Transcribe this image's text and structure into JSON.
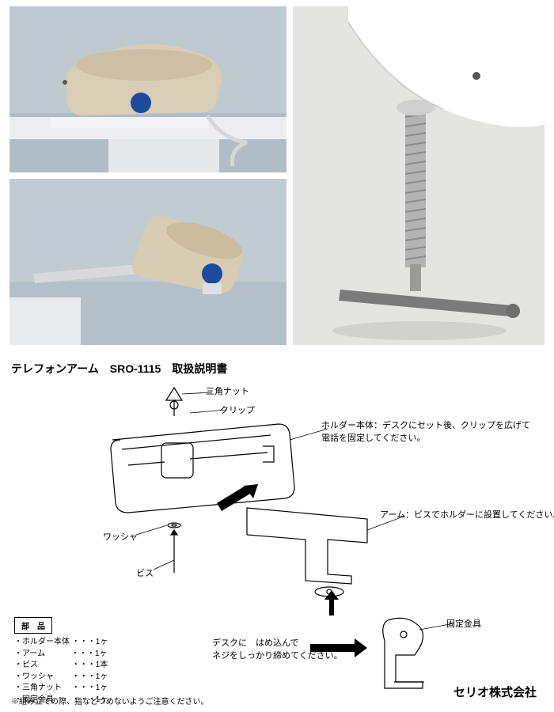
{
  "title": "テレフォンアーム　SRO-1115　取扱説明書",
  "photos": {
    "p1": {
      "bg_top": "#bfcad0",
      "bg_bot": "#bcc9d2",
      "phone": "#d9cdb6",
      "accent": "#1d4a9e",
      "cord": "#d6d6d6",
      "shelf": "#eeeef0"
    },
    "p2": {
      "bg": "#c1cbd2",
      "phone": "#d8ccb3",
      "accent": "#1b4aa0",
      "arm": "#d9d9dd"
    },
    "p3": {
      "bg": "#e4e4e2",
      "bracket": "#ffffff",
      "screw": "#a8a8a8",
      "bar": "#7a7a7a",
      "shadow": "#888"
    }
  },
  "diagram": {
    "stroke": "#000000",
    "stroke_w": 1.2,
    "arrow_fill": "#000000",
    "labels": {
      "tri_nut": "三角ナット",
      "clip": "クリップ",
      "holder": "ホルダー本体：デスクにセット後、クリップを広げて\n電話を固定してください。",
      "arm": "アーム：ビスでホルダーに設置してください。",
      "washer": "ワッシャ",
      "vis": "ビス",
      "desk": "デスクに　はめ込んで\nネジをしっかり締めてください。",
      "clamp": "固定金具"
    }
  },
  "parts": {
    "header": "部　品",
    "items": [
      "・ホルダー本体 ・・・1ヶ",
      "・アーム　　　 ・・・1ヶ",
      "・ビス　　　　 ・・・1本",
      "・ワッシャ　　 ・・・1ヶ",
      "・三角ナット　 ・・・1ヶ",
      "・固定金具　　 ・・・1ヶ"
    ]
  },
  "note": "※組み立ての際、指などつめないようご注意ください。",
  "company": "セリオ株式会社"
}
